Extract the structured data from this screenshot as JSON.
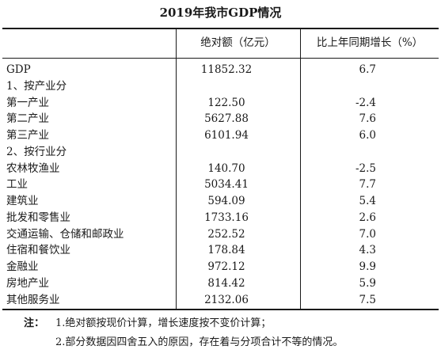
{
  "table": {
    "title": "2019年我市GDP情况",
    "headers": {
      "value": "绝对额（亿元）",
      "growth": "比上年同期增长（%）"
    },
    "rows": [
      {
        "name": "GDP",
        "value": "11852.32",
        "growth": "6.7"
      },
      {
        "name": "1、按产业分",
        "value": "",
        "growth": ""
      },
      {
        "name": "第一产业",
        "value": "122.50",
        "growth": "-2.4"
      },
      {
        "name": "第二产业",
        "value": "5627.88",
        "growth": "7.6"
      },
      {
        "name": "第三产业",
        "value": "6101.94",
        "growth": "6.0"
      },
      {
        "name": "2、按行业分",
        "value": "",
        "growth": ""
      },
      {
        "name": "农林牧渔业",
        "value": "140.70",
        "growth": "-2.5"
      },
      {
        "name": "工业",
        "value": "5034.41",
        "growth": "7.7"
      },
      {
        "name": "建筑业",
        "value": "594.09",
        "growth": "5.4"
      },
      {
        "name": "批发和零售业",
        "value": "1733.16",
        "growth": "2.6"
      },
      {
        "name": "交通运输、仓储和邮政业",
        "value": "252.52",
        "growth": "7.0"
      },
      {
        "name": "住宿和餐饮业",
        "value": "178.84",
        "growth": "4.3"
      },
      {
        "name": "金融业",
        "value": "972.12",
        "growth": "9.9"
      },
      {
        "name": "房地产业",
        "value": "814.42",
        "growth": "5.9"
      },
      {
        "name": "其他服务业",
        "value": "2132.06",
        "growth": "7.5"
      }
    ]
  },
  "notes": {
    "label": "注：",
    "line1": "1.绝对额按现价计算，增长速度按不变价计算；",
    "line2": "2.部分数据因四舍五入的原因，存在着与分项合计不等的情况。"
  }
}
